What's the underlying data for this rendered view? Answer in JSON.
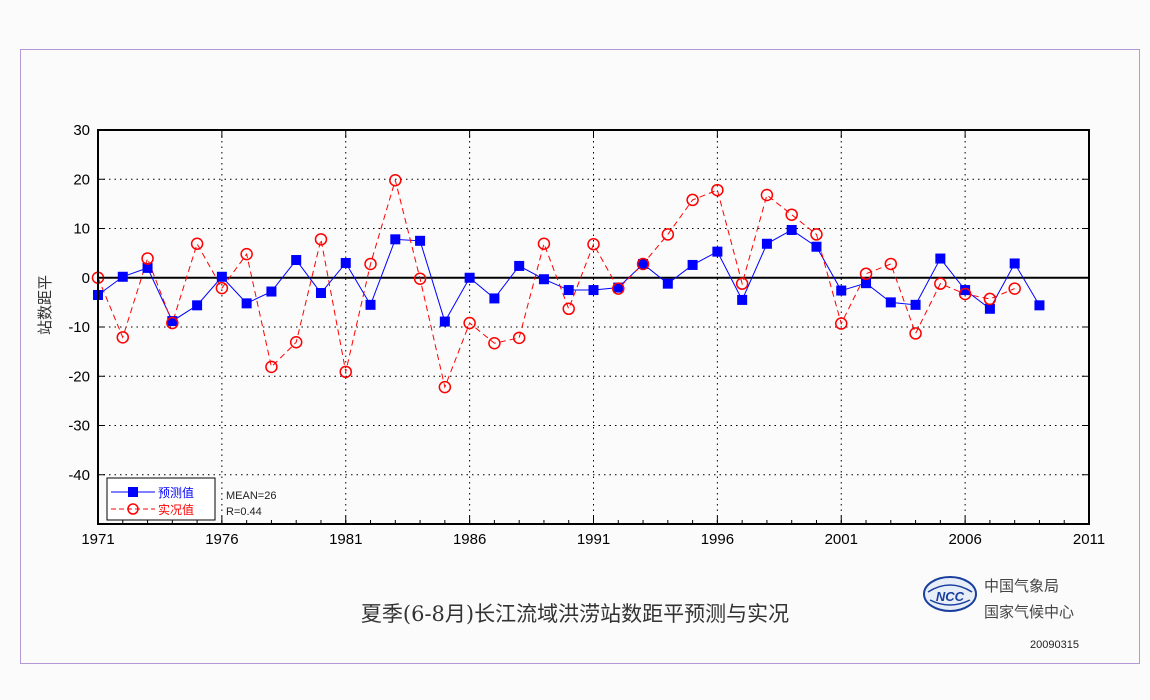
{
  "chart_data": {
    "type": "line",
    "title": "夏季(6-8月)长江流域洪涝站数距平预测与实况",
    "ylabel": "站数距平",
    "xlabel": "",
    "xlim": [
      1971,
      2011
    ],
    "ylim": [
      -50,
      30
    ],
    "x_ticks": [
      1971,
      1976,
      1981,
      1986,
      1991,
      1996,
      2001,
      2006,
      2011
    ],
    "y_ticks": [
      30,
      20,
      10,
      0,
      -10,
      -20,
      -30,
      -40
    ],
    "grid": true,
    "legend_position": "bottom-left",
    "series": [
      {
        "name": "预测值",
        "color": "#0000ff",
        "style": "solid",
        "marker": "square",
        "x": [
          1971,
          1972,
          1973,
          1974,
          1975,
          1976,
          1977,
          1978,
          1979,
          1980,
          1981,
          1982,
          1983,
          1984,
          1985,
          1986,
          1987,
          1988,
          1989,
          1990,
          1991,
          1992,
          1993,
          1994,
          1995,
          1996,
          1997,
          1998,
          1999,
          2000,
          2001,
          2002,
          2003,
          2004,
          2005,
          2006,
          2007,
          2008,
          2009
        ],
        "values": [
          -3.5,
          0.2,
          2,
          -8.8,
          -5.6,
          0.2,
          -5.2,
          -2.8,
          3.6,
          -3.1,
          3,
          -5.5,
          7.8,
          7.5,
          -8.9,
          0,
          -4.2,
          2.4,
          -0.3,
          -2.5,
          -2.5,
          -2,
          2.8,
          -1.2,
          2.6,
          5.3,
          -4.5,
          6.9,
          9.7,
          6.3,
          -2.6,
          -1.1,
          -5,
          -5.5,
          3.9,
          -2.5,
          -6.3,
          2.9,
          -5.6
        ]
      },
      {
        "name": "实况值",
        "color": "#ff0000",
        "style": "dashed",
        "marker": "circle",
        "x": [
          1971,
          1972,
          1973,
          1974,
          1975,
          1976,
          1977,
          1978,
          1979,
          1980,
          1981,
          1982,
          1983,
          1984,
          1985,
          1986,
          1987,
          1988,
          1989,
          1990,
          1991,
          1992,
          1993,
          1994,
          1995,
          1996,
          1997,
          1998,
          1999,
          2000,
          2001,
          2002,
          2003,
          2004,
          2005,
          2006,
          2007,
          2008
        ],
        "values": [
          0,
          -12.1,
          3.9,
          -9.2,
          6.9,
          -2.1,
          4.8,
          -18.1,
          -13.1,
          7.8,
          -19.1,
          2.8,
          19.8,
          -0.2,
          -22.2,
          -9.2,
          -13.3,
          -12.2,
          6.9,
          -6.3,
          6.8,
          -2.2,
          2.8,
          8.8,
          15.8,
          17.8,
          -1.2,
          16.8,
          12.8,
          8.8,
          -9.3,
          0.8,
          2.8,
          -11.3,
          -1.2,
          -3.3,
          -4.3,
          -2.2
        ]
      }
    ],
    "annotations": {
      "mean": "MEAN=26",
      "r": "R=0.44"
    }
  },
  "footer": {
    "org_line1": "中国气象局",
    "org_line2": "国家气候中心",
    "logo_text": "NCC",
    "date": "20090315"
  }
}
